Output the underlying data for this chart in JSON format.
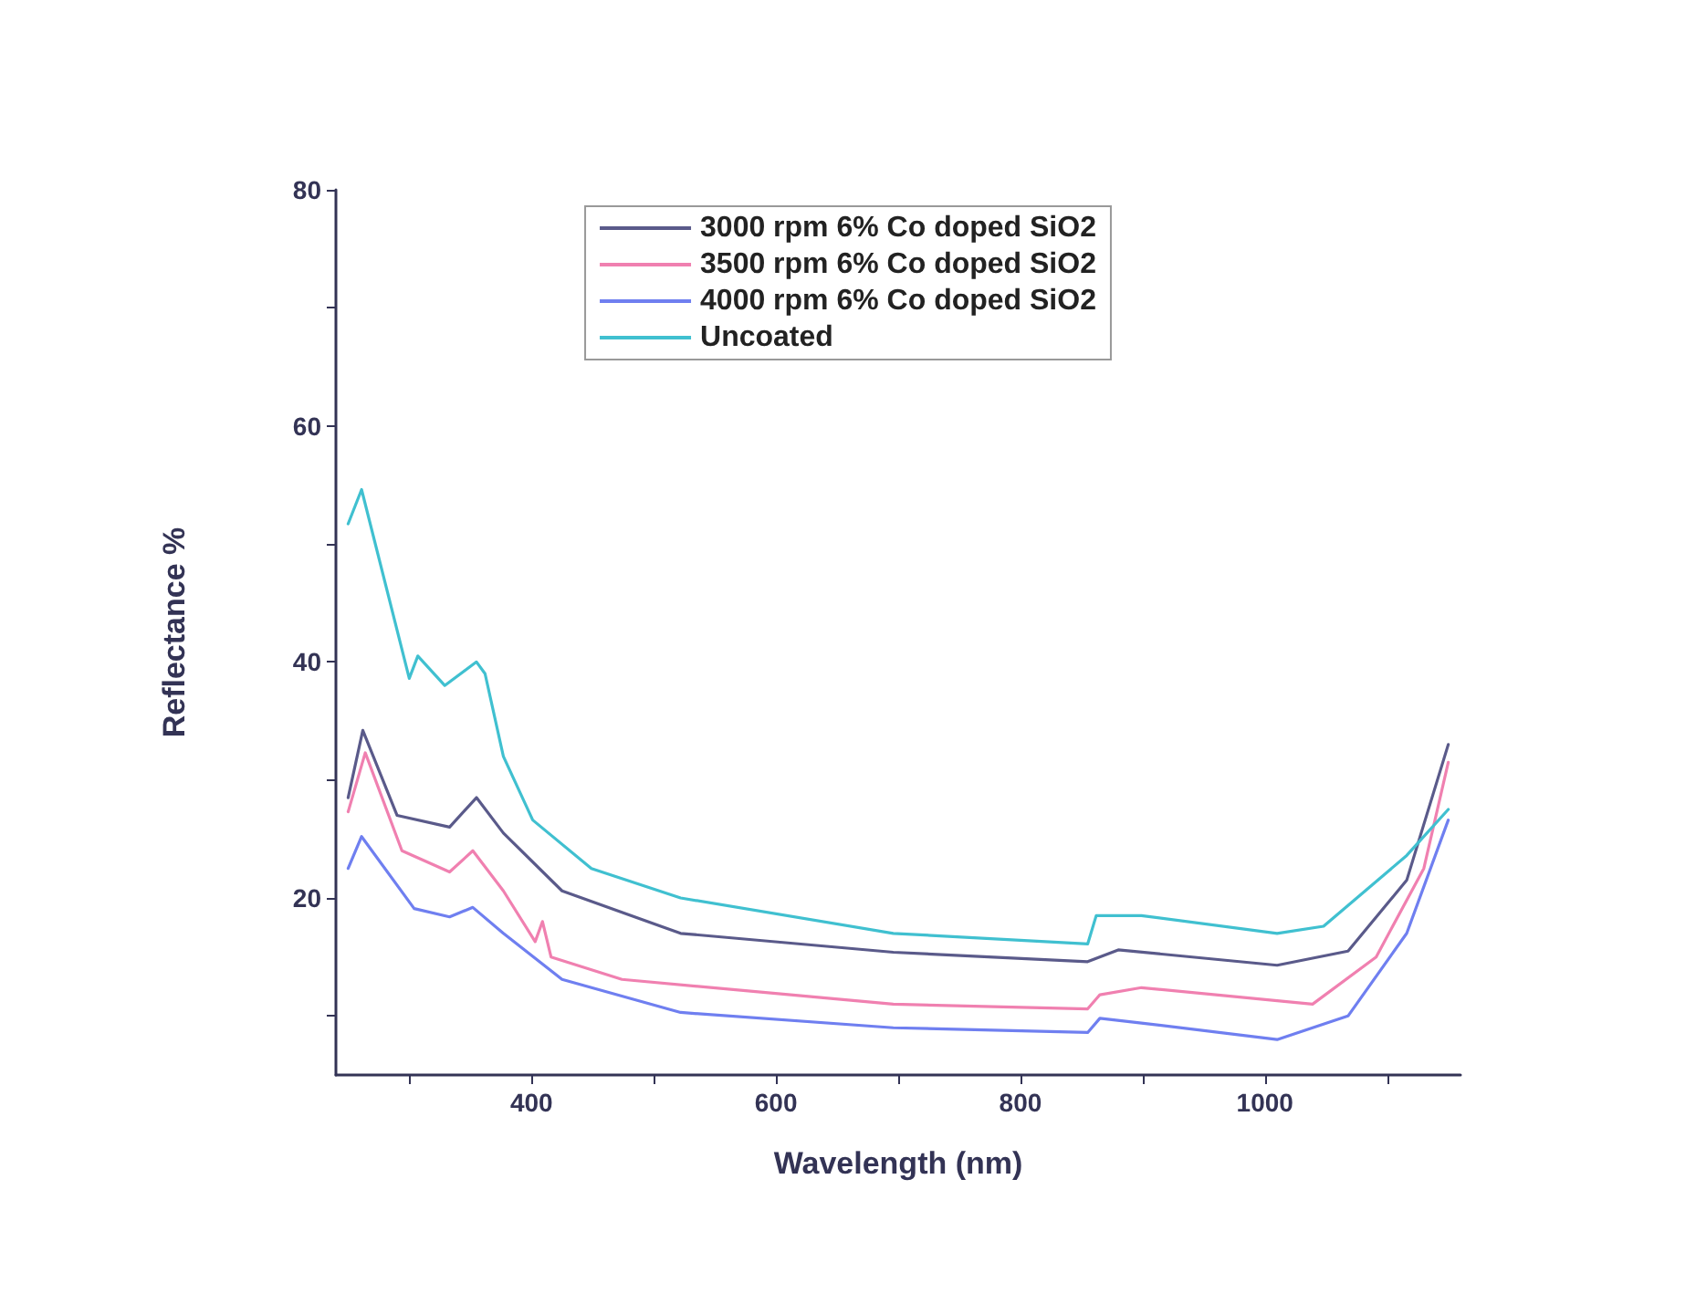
{
  "chart_data": {
    "type": "line",
    "xlabel": "Wavelength (nm)",
    "ylabel": "Reflectance %",
    "xlim": [
      240,
      1160
    ],
    "ylim": [
      5,
      80
    ],
    "xticks": [
      {
        "value": 300,
        "label": null
      },
      400,
      {
        "value": 500,
        "label": null
      },
      600,
      {
        "value": 700,
        "label": null
      },
      800,
      {
        "value": 900,
        "label": null
      },
      1000,
      {
        "value": 1100,
        "label": null
      }
    ],
    "yticks": [
      {
        "value": 10,
        "label": null
      },
      20,
      {
        "value": 30,
        "label": null
      },
      40,
      {
        "value": 50,
        "label": null
      },
      60,
      {
        "value": 70,
        "label": null
      },
      80
    ],
    "grid": false,
    "legend": "top",
    "marker": "none",
    "line_style": "solid",
    "series": [
      {
        "name": "3000 rpm 6% Co doped SiO2",
        "color": "#5a5a8a",
        "x": [
          250,
          262,
          290,
          333,
          355,
          377,
          425,
          522,
          696,
          855,
          880,
          1010,
          1068,
          1116,
          1150
        ],
        "values": [
          28.5,
          34.2,
          27,
          26,
          28.5,
          25.5,
          20.6,
          17,
          15.4,
          14.6,
          15.6,
          14.3,
          15.5,
          21.5,
          33
        ]
      },
      {
        "name": "3500 rpm 6% Co doped SiO2",
        "color": "#f080b0",
        "x": [
          250,
          264,
          294,
          333,
          352,
          377,
          403,
          409,
          416,
          474,
          696,
          855,
          865,
          899,
          1039,
          1091,
          1130,
          1150
        ],
        "values": [
          27.3,
          32.3,
          24,
          22.2,
          24,
          20.6,
          16.3,
          18,
          15,
          13.1,
          11,
          10.6,
          11.8,
          12.4,
          11,
          15,
          22.5,
          31.5
        ]
      },
      {
        "name": "4000 rpm 6% Co doped SiO2",
        "color": "#6f7ff0",
        "x": [
          250,
          261,
          304,
          333,
          352,
          377,
          425,
          522,
          696,
          855,
          865,
          899,
          1010,
          1068,
          1116,
          1150
        ],
        "values": [
          22.5,
          25.2,
          19.1,
          18.4,
          19.2,
          17,
          13.1,
          10.3,
          9,
          8.6,
          9.8,
          9.4,
          8,
          10,
          17,
          26.6
        ]
      },
      {
        "name": "Uncoated",
        "color": "#40c0d0",
        "x": [
          250,
          261,
          300,
          307,
          329,
          355,
          362,
          377,
          401,
          449,
          522,
          696,
          855,
          862,
          899,
          1010,
          1048,
          1116,
          1150
        ],
        "values": [
          51.7,
          54.6,
          38.6,
          40.5,
          38,
          40,
          39,
          32,
          26.6,
          22.5,
          20,
          17,
          16.1,
          18.5,
          18.5,
          17,
          17.6,
          23.6,
          27.5
        ]
      }
    ]
  }
}
